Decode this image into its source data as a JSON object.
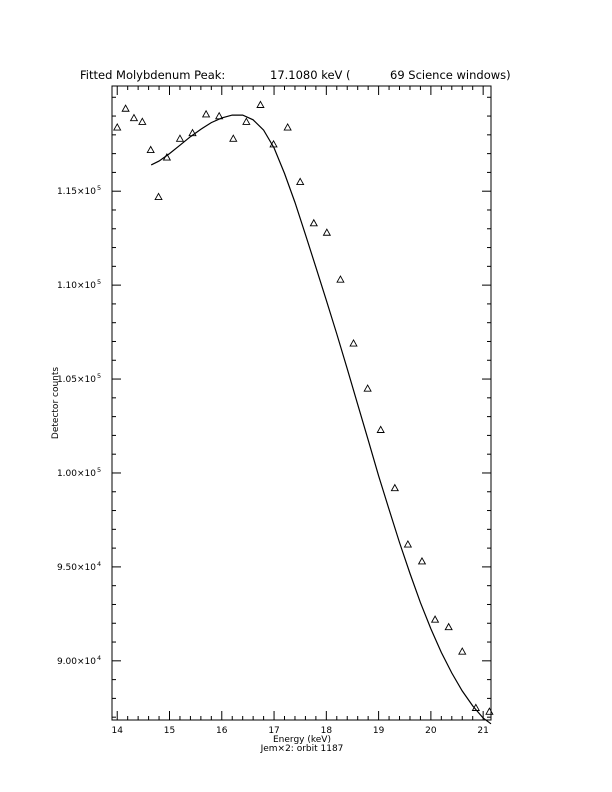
{
  "chart_data": {
    "type": "scatter",
    "title": {
      "label": "Fitted Molybdenum Peak:",
      "energy": "17.1080 keV (",
      "windows": "69 Science windows)"
    },
    "xlabel": "Energy (keV)",
    "ylabel": "Detector counts",
    "footer": "Jem×2: orbit 1187",
    "xlim": [
      13.9,
      21.15
    ],
    "ylim": [
      86850,
      120600
    ],
    "grid": false,
    "x_ticks": [
      {
        "value": 14,
        "label": "14"
      },
      {
        "value": 15,
        "label": "15"
      },
      {
        "value": 16,
        "label": "16"
      },
      {
        "value": 17,
        "label": "17"
      },
      {
        "value": 18,
        "label": "18"
      },
      {
        "value": 19,
        "label": "19"
      },
      {
        "value": 20,
        "label": "20"
      },
      {
        "value": 21,
        "label": "21"
      }
    ],
    "y_ticks": [
      {
        "value": 90000,
        "mant": "9.00×10",
        "exp": "4"
      },
      {
        "value": 95000,
        "mant": "9.50×10",
        "exp": "4"
      },
      {
        "value": 100000,
        "mant": "1.00×10",
        "exp": "5"
      },
      {
        "value": 105000,
        "mant": "1.05×10",
        "exp": "5"
      },
      {
        "value": 110000,
        "mant": "1.10×10",
        "exp": "5"
      },
      {
        "value": 115000,
        "mant": "1.15×10",
        "exp": "5"
      }
    ],
    "series": [
      {
        "kind": "points",
        "marker": "triangle",
        "x": [
          14.0,
          14.16,
          14.32,
          14.48,
          14.64,
          14.79,
          14.95,
          15.2,
          15.44,
          15.7,
          15.95,
          16.22,
          16.47,
          16.74,
          16.99,
          17.26,
          17.5,
          17.76,
          18.01,
          18.27,
          18.52,
          18.79,
          19.04,
          19.31,
          19.56,
          19.83,
          20.08,
          20.34,
          20.6,
          20.86,
          21.12
        ],
        "y": [
          118400,
          119400,
          118900,
          118700,
          117200,
          114700,
          116800,
          117800,
          118100,
          119100,
          119000,
          117800,
          118700,
          119600,
          117500,
          118400,
          115500,
          113300,
          112800,
          110300,
          106900,
          104500,
          102300,
          99200,
          96200,
          95300,
          92200,
          91800,
          90500,
          87500,
          87300
        ]
      },
      {
        "kind": "fit-line",
        "x": [
          14.65,
          14.8,
          15.0,
          15.2,
          15.4,
          15.6,
          15.8,
          16.0,
          16.2,
          16.4,
          16.6,
          16.8,
          17.0,
          17.2,
          17.4,
          17.6,
          17.8,
          18.0,
          18.2,
          18.4,
          18.6,
          18.8,
          19.0,
          19.2,
          19.4,
          19.6,
          19.8,
          20.0,
          20.2,
          20.4,
          20.6,
          20.8,
          21.0,
          21.15
        ],
        "y": [
          116400,
          116600,
          117000,
          117450,
          117900,
          118300,
          118650,
          118900,
          119050,
          119050,
          118800,
          118250,
          117300,
          115950,
          114400,
          112700,
          110950,
          109200,
          107400,
          105550,
          103650,
          101750,
          99850,
          98050,
          96300,
          94650,
          93100,
          91700,
          90450,
          89350,
          88400,
          87600,
          86950,
          86650
        ]
      }
    ]
  }
}
